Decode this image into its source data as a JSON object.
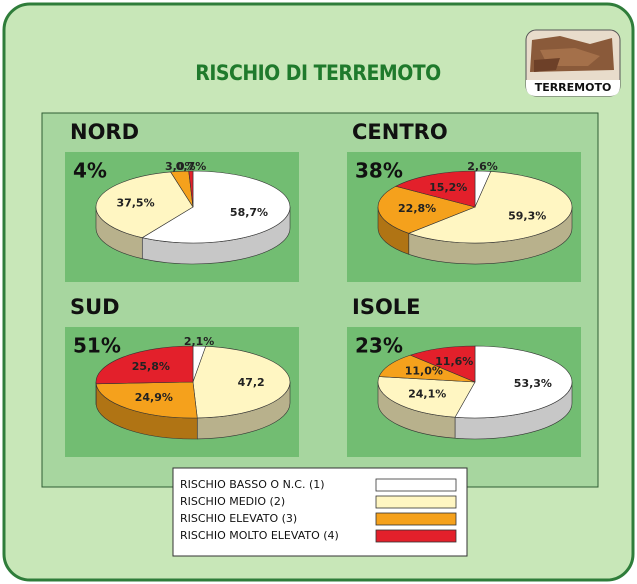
{
  "title": "RISCHIO DI TERREMOTO",
  "badge": "TERREMOTO",
  "legend": {
    "labels": [
      "RISCHIO BASSO O N.C. (1)",
      "RISCHIO MEDIO (2)",
      "RISCHIO ELEVATO (3)",
      "RISCHIO MOLTO ELEVATO (4)"
    ],
    "colors": [
      "#ffffff",
      "#fff6c2",
      "#f5a11c",
      "#e3202b"
    ]
  },
  "chart_data": [
    {
      "type": "pie",
      "title": "NORD",
      "subtitle": "4%",
      "values": [
        58.7,
        37.5,
        3.0,
        0.7
      ],
      "value_labels": [
        "58,7%",
        "37,5%",
        "3,0%",
        "0,7%"
      ]
    },
    {
      "type": "pie",
      "title": "CENTRO",
      "subtitle": "38%",
      "values": [
        2.6,
        59.3,
        22.8,
        15.2
      ],
      "value_labels": [
        "2,6%",
        "59,3%",
        "22,8%",
        "15,2%"
      ]
    },
    {
      "type": "pie",
      "title": "SUD",
      "subtitle": "51%",
      "values": [
        2.1,
        47.2,
        24.9,
        25.8
      ],
      "value_labels": [
        "2,1%",
        "47,2",
        "24,9%",
        "25,8%"
      ]
    },
    {
      "type": "pie",
      "title": "ISOLE",
      "subtitle": "23%",
      "values": [
        53.3,
        24.1,
        11.0,
        11.6
      ],
      "value_labels": [
        "53,3%",
        "24,1%",
        "11,0%",
        "11,6%"
      ]
    }
  ]
}
